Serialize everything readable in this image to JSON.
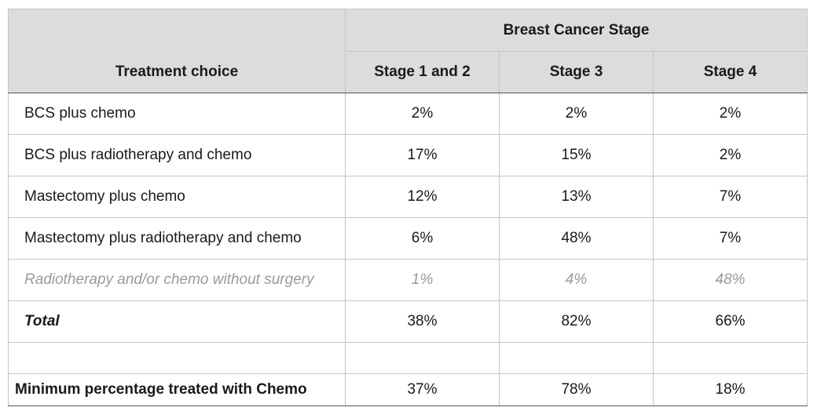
{
  "table": {
    "group_header": "Breast Cancer Stage",
    "column_header": "Treatment choice",
    "stage_headers": [
      "Stage 1 and 2",
      "Stage 3",
      "Stage 4"
    ],
    "rows": [
      {
        "label": "BCS plus chemo",
        "values": [
          "2%",
          "2%",
          "2%"
        ]
      },
      {
        "label": "BCS plus radiotherapy and chemo",
        "values": [
          "17%",
          "15%",
          "2%"
        ]
      },
      {
        "label": "Mastectomy plus chemo",
        "values": [
          "12%",
          "13%",
          "7%"
        ]
      },
      {
        "label": "Mastectomy plus radiotherapy and chemo",
        "values": [
          "6%",
          "48%",
          "7%"
        ]
      },
      {
        "label": "Radiotherapy and/or chemo without surgery",
        "values": [
          "1%",
          "4%",
          "48%"
        ]
      }
    ],
    "total": {
      "label": "Total",
      "values": [
        "38%",
        "82%",
        "66%"
      ]
    },
    "minimum": {
      "label": "Minimum percentage treated with Chemo",
      "values": [
        "37%",
        "78%",
        "18%"
      ]
    }
  }
}
